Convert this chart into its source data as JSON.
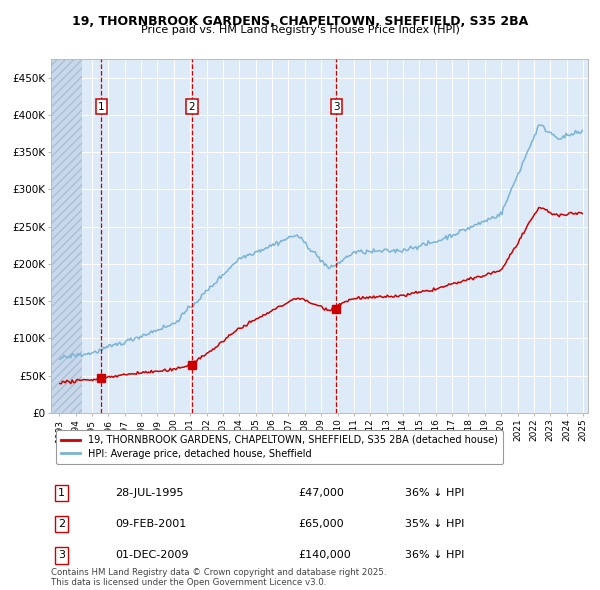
{
  "title_line1": "19, THORNBROOK GARDENS, CHAPELTOWN, SHEFFIELD, S35 2BA",
  "title_line2": "Price paid vs. HM Land Registry's House Price Index (HPI)",
  "ylim": [
    0,
    475000
  ],
  "yticks": [
    0,
    50000,
    100000,
    150000,
    200000,
    250000,
    300000,
    350000,
    400000,
    450000
  ],
  "ytick_labels": [
    "£0",
    "£50K",
    "£100K",
    "£150K",
    "£200K",
    "£250K",
    "£300K",
    "£350K",
    "£400K",
    "£450K"
  ],
  "hpi_color": "#7ab3d4",
  "price_color": "#cc0000",
  "vline_color": "#cc0000",
  "bg_color": "#ddeaf7",
  "hatch_color": "#c8d8ea",
  "grid_color": "#ffffff",
  "legend_entries": [
    "19, THORNBROOK GARDENS, CHAPELTOWN, SHEFFIELD, S35 2BA (detached house)",
    "HPI: Average price, detached house, Sheffield"
  ],
  "table_rows": [
    {
      "num": "1",
      "date": "28-JUL-1995",
      "price": "£47,000",
      "hpi": "36% ↓ HPI"
    },
    {
      "num": "2",
      "date": "09-FEB-2001",
      "price": "£65,000",
      "hpi": "35% ↓ HPI"
    },
    {
      "num": "3",
      "date": "01-DEC-2009",
      "price": "£140,000",
      "hpi": "36% ↓ HPI"
    }
  ],
  "footnote": "Contains HM Land Registry data © Crown copyright and database right 2025.\nThis data is licensed under the Open Government Licence v3.0.",
  "xstart_year": 1993,
  "xend_year": 2025,
  "purchase_times": [
    1995.57,
    2001.11,
    2009.92
  ],
  "purchase_prices": [
    47000,
    65000,
    140000
  ],
  "purchase_labels": [
    "1",
    "2",
    "3"
  ]
}
